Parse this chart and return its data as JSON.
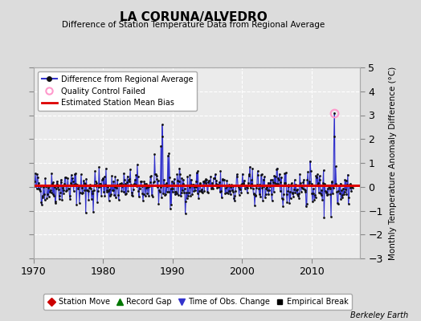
{
  "title": "LA CORUNA/ALVEDRO",
  "subtitle": "Difference of Station Temperature Data from Regional Average",
  "ylabel": "Monthly Temperature Anomaly Difference (°C)",
  "xlim": [
    1970,
    2017
  ],
  "ylim": [
    -3,
    5
  ],
  "yticks": [
    -3,
    -2,
    -1,
    0,
    1,
    2,
    3,
    4,
    5
  ],
  "xticks": [
    1970,
    1980,
    1990,
    2000,
    2010
  ],
  "bias_value": 0.05,
  "background_color": "#dcdcdc",
  "plot_bg_color": "#ebebeb",
  "line_color": "#3333cc",
  "fill_color": "#8888ee",
  "bias_color": "#dd0000",
  "marker_color": "#111111",
  "qc_fail_color": "#ff99cc",
  "berkeley_earth_text": "Berkeley Earth",
  "seed": 42,
  "n_points": 552
}
